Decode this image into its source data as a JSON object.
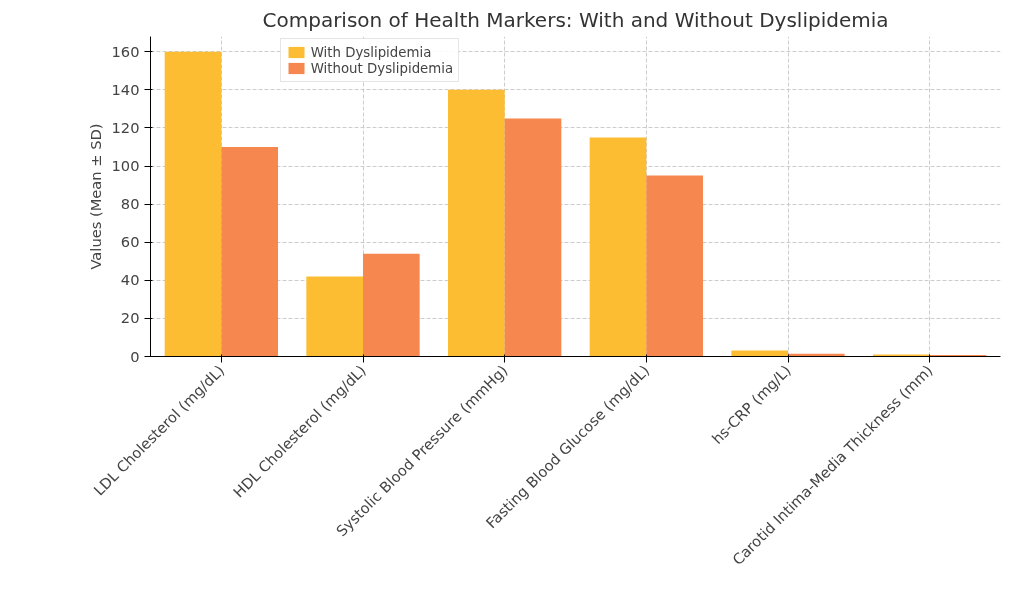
{
  "chart_data": {
    "type": "bar",
    "title": "Comparison of Health Markers: With and Without Dyslipidemia",
    "ylabel": "Values (Mean ± SD)",
    "categories": [
      "LDL Cholesterol (mg/dL)",
      "HDL Cholesterol (mg/dL)",
      "Systolic Blood Pressure (mmHg)",
      "Fasting Blood Glucose (mg/dL)",
      "hs-CRP (mg/L)",
      "Carotid Intima-Media Thickness (mm)"
    ],
    "series": [
      {
        "name": "With Dyslipidemia",
        "color": "#fdbd33",
        "values": [
          160,
          42,
          140,
          115,
          3.2,
          1.0
        ]
      },
      {
        "name": "Without Dyslipidemia",
        "color": "#f5874f",
        "values": [
          110,
          54,
          125,
          95,
          1.5,
          0.8
        ]
      }
    ],
    "ylim": [
      0,
      168
    ],
    "yticks": [
      0,
      20,
      40,
      60,
      80,
      100,
      120,
      140,
      160
    ],
    "grid": true,
    "legend": "top left"
  }
}
